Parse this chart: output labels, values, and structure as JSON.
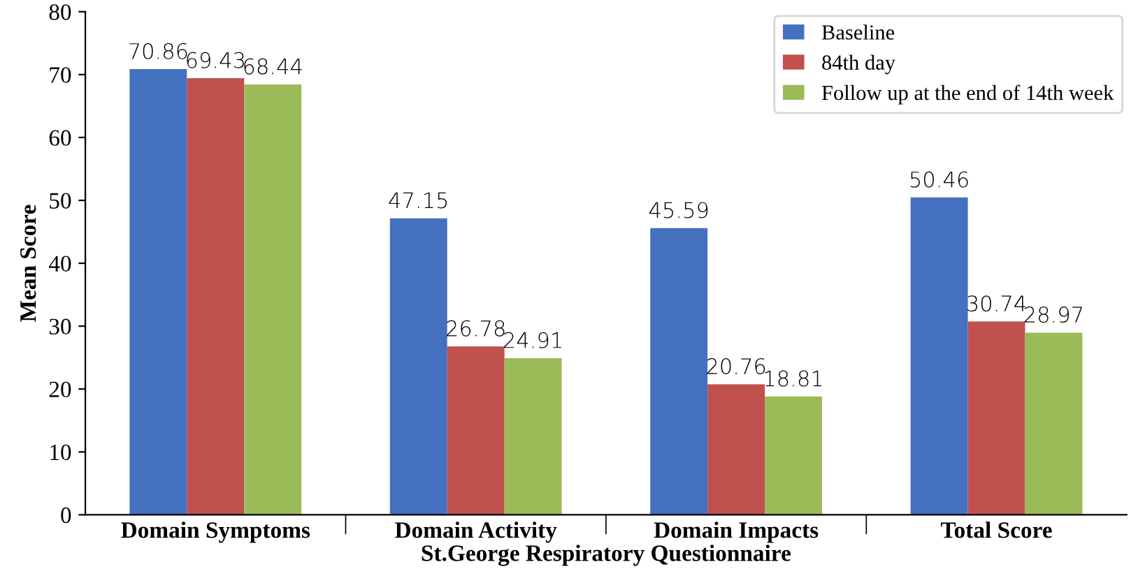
{
  "chart_data": {
    "type": "bar",
    "xlabel": "St.George Respiratory Questionnaire",
    "ylabel": "Mean Score",
    "categories": [
      "Domain Symptoms",
      "Domain Activity",
      "Domain Impacts",
      "Total Score"
    ],
    "series": [
      {
        "name": "Baseline",
        "color": "#4470c0",
        "values": [
          70.86,
          47.15,
          45.59,
          50.46
        ]
      },
      {
        "name": "84th day",
        "color": "#c0504d",
        "values": [
          69.43,
          26.78,
          20.76,
          30.74
        ]
      },
      {
        "name": "Follow up at the end of 14th week",
        "color": "#9bbb59",
        "values": [
          68.44,
          24.91,
          18.81,
          28.97
        ]
      }
    ],
    "ylim": [
      0,
      80
    ],
    "yticks": [
      0,
      10,
      20,
      30,
      40,
      50,
      60,
      70,
      80
    ],
    "grid": false,
    "legend": "top right",
    "data_labels": true
  }
}
